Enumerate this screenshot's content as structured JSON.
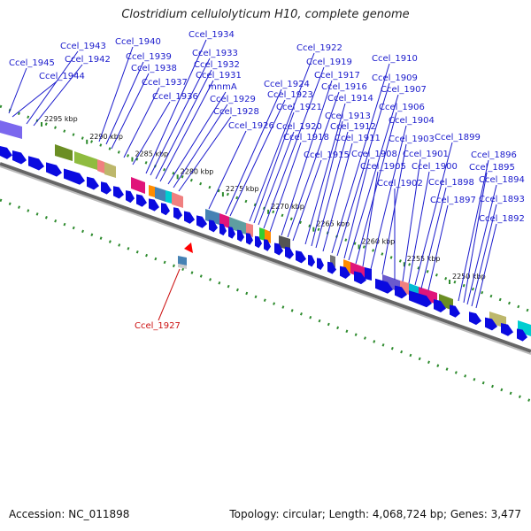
{
  "title": "Clostridium cellulolyticum H10, complete genome",
  "footer": {
    "accession": "Accession: NC_011898",
    "summary": "Topology: circular; Length: 4,068,724 bp; Genes: 3,477"
  },
  "scale_ticks": [
    {
      "label": "2295 kbp",
      "pos": 2295000
    },
    {
      "label": "2290 kbp",
      "pos": 2290000
    },
    {
      "label": "2285 kbp",
      "pos": 2285000
    },
    {
      "label": "2280 kbp",
      "pos": 2280000
    },
    {
      "label": "2275 kbp",
      "pos": 2275000
    },
    {
      "label": "2270 kbp",
      "pos": 2270000
    },
    {
      "label": "2265 kbp",
      "pos": 2265000
    },
    {
      "label": "2260 kbp",
      "pos": 2260000
    },
    {
      "label": "2255 kbp",
      "pos": 2255000
    },
    {
      "label": "2250 kbp",
      "pos": 2250000
    }
  ],
  "gene_labels": [
    "Ccel_1945",
    "Ccel_1944",
    "Ccel_1943",
    "Ccel_1942",
    "Ccel_1940",
    "Ccel_1939",
    "Ccel_1938",
    "Ccel_1937",
    "Ccel_1936",
    "Ccel_1934",
    "Ccel_1933",
    "Ccel_1932",
    "Ccel_1931",
    "mnmA",
    "Ccel_1929",
    "Ccel_1928",
    "Ccel_1926",
    "Ccel_1924",
    "Ccel_1923",
    "Ccel_1922",
    "Ccel_1921",
    "Ccel_1920",
    "Ccel_1919",
    "Ccel_1918",
    "Ccel_1917",
    "Ccel_1916",
    "Ccel_1915",
    "Ccel_1914",
    "Ccel_1913",
    "Ccel_1912",
    "Ccel_1911",
    "Ccel_1910",
    "Ccel_1909",
    "Ccel_1908",
    "Ccel_1907",
    "Ccel_1906",
    "Ccel_1905",
    "Ccel_1904",
    "Ccel_1903",
    "Ccel_1902",
    "Ccel_1901",
    "Ccel_1900",
    "Ccel_1899",
    "Ccel_1898",
    "Ccel_1897",
    "Ccel_1896",
    "Ccel_1895",
    "Ccel_1894",
    "Ccel_1893",
    "Ccel_1892"
  ],
  "highlight_label": "Ccel_1927",
  "colors": {
    "label": "#1a1acc",
    "gene_blue": "#0a0ae0",
    "backbone": "#888888",
    "dots": "#2e8b2e",
    "highlight": "#cc1111"
  }
}
